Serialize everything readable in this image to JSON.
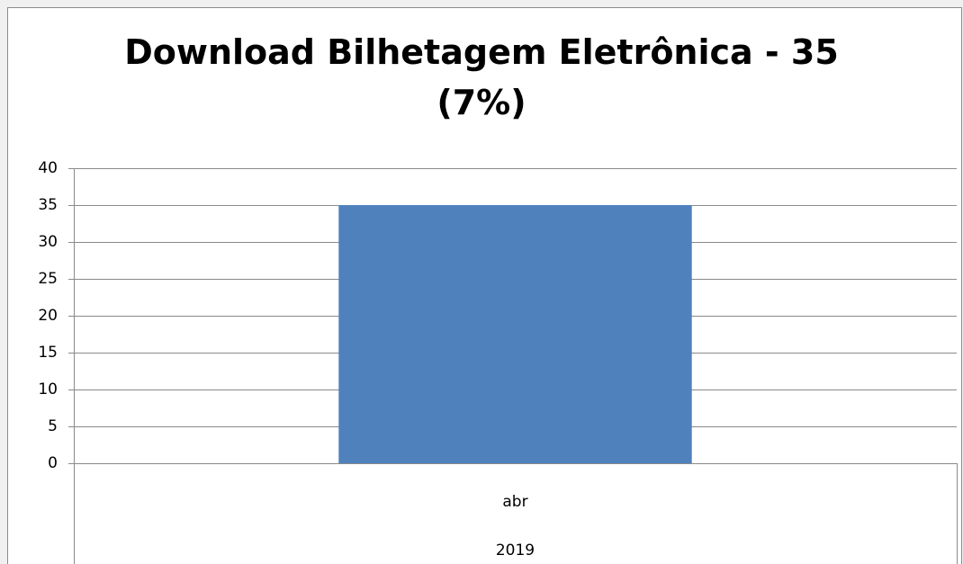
{
  "chart_data": {
    "type": "bar",
    "title": "Download Bilhetagem Eletrônica - 35 (7%)",
    "categories": [
      "abr"
    ],
    "category_group": "2019",
    "values": [
      35
    ],
    "color": "#4f81bd",
    "ylim": [
      0,
      40
    ],
    "yticks": [
      0,
      5,
      10,
      15,
      20,
      25,
      30,
      35,
      40
    ],
    "grid": true
  }
}
